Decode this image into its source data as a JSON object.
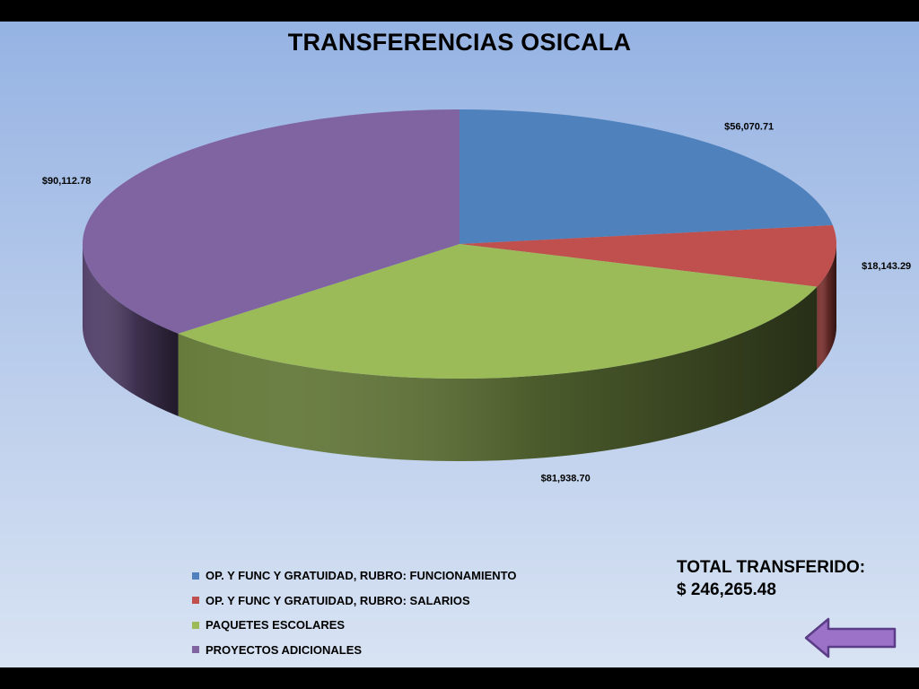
{
  "slide": {
    "title": "TRANSFERENCIAS OSICALA",
    "total_label": "TOTAL TRANSFERIDO:",
    "total_value": "$ 246,265.48",
    "back_button_icon": "left-arrow-icon"
  },
  "chart_data": {
    "type": "pie",
    "three_d": true,
    "title": "TRANSFERENCIAS OSICALA",
    "legend_position": "bottom",
    "categories": [
      "OP. Y FUNC Y GRATUIDAD,  RUBRO: FUNCIONAMIENTO",
      "OP. Y FUNC Y GRATUIDAD,  RUBRO: SALARIOS",
      "PAQUETES ESCOLARES",
      "PROYECTOS  ADICIONALES"
    ],
    "values": [
      56070.71,
      18143.29,
      81938.7,
      90112.78
    ],
    "data_labels": [
      "$56,070.71",
      "$18,143.29",
      "$81,938.70",
      "$90,112.78"
    ],
    "colors": [
      "#4f81bd",
      "#c0504d",
      "#9bbb59",
      "#8064a2"
    ]
  }
}
